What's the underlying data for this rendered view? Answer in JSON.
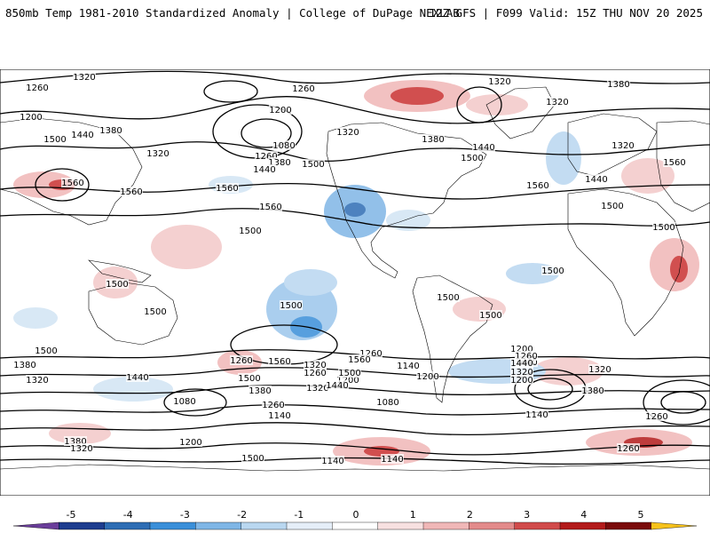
{
  "header": {
    "title": "850mb Temp 1981-2010 Standardized Anomaly | College of DuPage NEXLAB",
    "run_info": "12Z GFS | F099 Valid: 15Z THU NOV 20 2025"
  },
  "map": {
    "contour_labels": [
      "1320",
      "1260",
      "1200",
      "1500",
      "1440",
      "1380",
      "1320",
      "1560",
      "1560",
      "1260",
      "1200",
      "1320",
      "1080",
      "1260",
      "1380",
      "1500",
      "1440",
      "1560",
      "1560",
      "1500",
      "1500",
      "1500",
      "1500",
      "1320",
      "1320",
      "1380",
      "1440",
      "1500",
      "1560",
      "1380",
      "1320",
      "1560",
      "1440",
      "1500",
      "1500",
      "1500",
      "1500",
      "1500",
      "1500",
      "1380",
      "1320",
      "1440",
      "1260",
      "1320",
      "1260",
      "1200",
      "1320",
      "1260",
      "1560",
      "1500",
      "1380",
      "1260",
      "1140",
      "1080",
      "1440",
      "1320",
      "1200",
      "1140",
      "1080",
      "1140",
      "1200",
      "1560",
      "1500",
      "1440",
      "1380",
      "1320",
      "1200",
      "1260",
      "1440",
      "1380",
      "1320",
      "1260",
      "1500",
      "1140",
      "1140",
      "1260",
      "1200"
    ]
  },
  "colorbar": {
    "ticks": [
      "-5",
      "-4",
      "-3",
      "-2",
      "-1",
      "0",
      "1",
      "2",
      "3",
      "4",
      "5"
    ],
    "colors": [
      "#6a3d9a",
      "#1e3d8f",
      "#2e6db4",
      "#3a8fd9",
      "#7fb6e6",
      "#b9d7f0",
      "#e5eef8",
      "#ffffff",
      "#f7e0e0",
      "#f0b7b7",
      "#e38b8b",
      "#d14b4b",
      "#b31b1b",
      "#7a0b0b",
      "#f7c21a"
    ]
  }
}
